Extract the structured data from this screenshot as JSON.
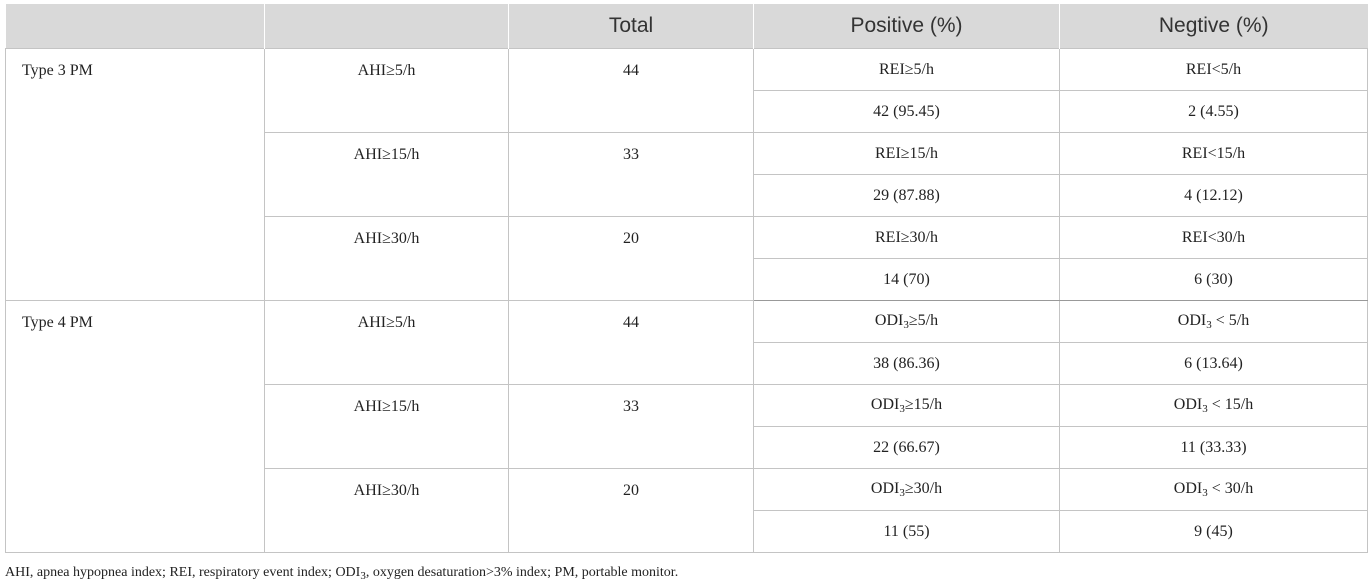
{
  "header": {
    "col1": "",
    "col2": "",
    "col3": "Total",
    "col4": "Positive (%)",
    "col5": "Negtive (%)"
  },
  "groups": [
    {
      "label": "Type 3 PM",
      "rows": [
        {
          "criterion": "AHI≥5/h",
          "total": "44",
          "pos_label": "REI≥5/h",
          "neg_label": "REI<5/h",
          "pos_value": "42 (95.45)",
          "neg_value": "2 (4.55)"
        },
        {
          "criterion": "AHI≥15/h",
          "total": "33",
          "pos_label": "REI≥15/h",
          "neg_label": "REI<15/h",
          "pos_value": "29 (87.88)",
          "neg_value": "4 (12.12)"
        },
        {
          "criterion": "AHI≥30/h",
          "total": "20",
          "pos_label": "REI≥30/h",
          "neg_label": "REI<30/h",
          "pos_value": "14 (70)",
          "neg_value": "6 (30)"
        }
      ]
    },
    {
      "label": "Type 4 PM",
      "rows": [
        {
          "criterion": "AHI≥5/h",
          "total": "44",
          "pos_label_pre": "ODI",
          "pos_label_sub": "3",
          "pos_label_post": "≥5/h",
          "neg_label_pre": "ODI",
          "neg_label_sub": "3",
          "neg_label_post": " < 5/h",
          "pos_value": "38 (86.36)",
          "neg_value": "6 (13.64)"
        },
        {
          "criterion": "AHI≥15/h",
          "total": "33",
          "pos_label_pre": "ODI",
          "pos_label_sub": "3",
          "pos_label_post": "≥15/h",
          "neg_label_pre": "ODI",
          "neg_label_sub": "3",
          "neg_label_post": " < 15/h",
          "pos_value": "22 (66.67)",
          "neg_value": "11 (33.33)"
        },
        {
          "criterion": "AHI≥30/h",
          "total": "20",
          "pos_label_pre": "ODI",
          "pos_label_sub": "3",
          "pos_label_post": "≥30/h",
          "neg_label_pre": "ODI",
          "neg_label_sub": "3",
          "neg_label_post": " < 30/h",
          "pos_value": "11 (55)",
          "neg_value": "9 (45)"
        }
      ]
    }
  ],
  "footnote": {
    "part1": "AHI, apnea hypopnea index; REI, respiratory event index; ODI",
    "sub": "3",
    "part2": ", oxygen desaturation>3% index; PM, portable monitor."
  }
}
